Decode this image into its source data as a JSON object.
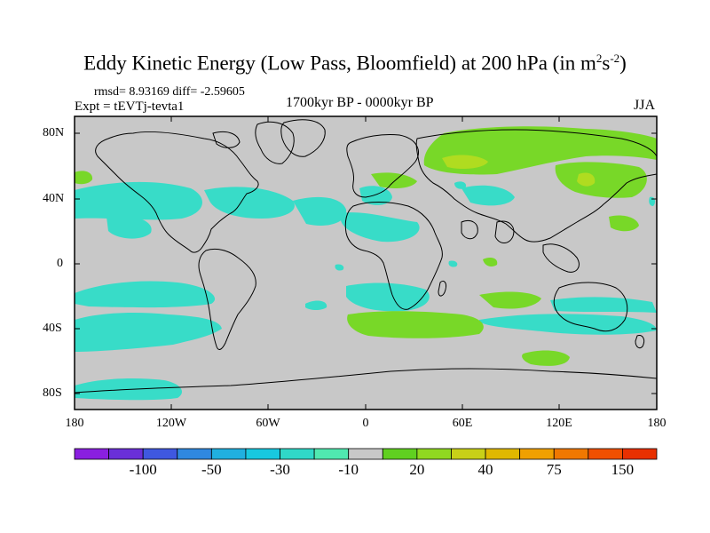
{
  "title": {
    "main": "Eddy Kinetic Energy (Low Pass, Bloomfield) at 200 hPa (in m",
    "sup1": "2",
    "mid": "s",
    "sup2": "-2",
    "end": ")"
  },
  "stats": {
    "rmsd_text": "rmsd= 8.93169 diff= -2.59605"
  },
  "experiment": "Expt = tEVTj-tevta1",
  "period": "1700kyr BP - 0000kyr BP",
  "season": "JJA",
  "lat_ticks": [
    "80N",
    "40N",
    "0",
    "40S",
    "80S"
  ],
  "lon_ticks": [
    "180",
    "120W",
    "60W",
    "0",
    "60E",
    "120E",
    "180"
  ],
  "colorbar": {
    "labels": [
      "-100",
      "-50",
      "-30",
      "-10",
      "20",
      "40",
      "75",
      "150"
    ],
    "colors": [
      "#8a1fe0",
      "#6a2fd8",
      "#3f58e0",
      "#2f88e0",
      "#20b0e0",
      "#18c8e0",
      "#30d8c8",
      "#50e8b0",
      "#c8c8c8",
      "#60d020",
      "#90d820",
      "#c8d018",
      "#e0b800",
      "#f0a000",
      "#f07800",
      "#f05000",
      "#e83000"
    ]
  },
  "colors": {
    "background_land_ocean": "#c8c8c8",
    "negative_region": "#38dcc8",
    "positive_region": "#78d828",
    "strong_positive_region": "#b0dc20"
  }
}
